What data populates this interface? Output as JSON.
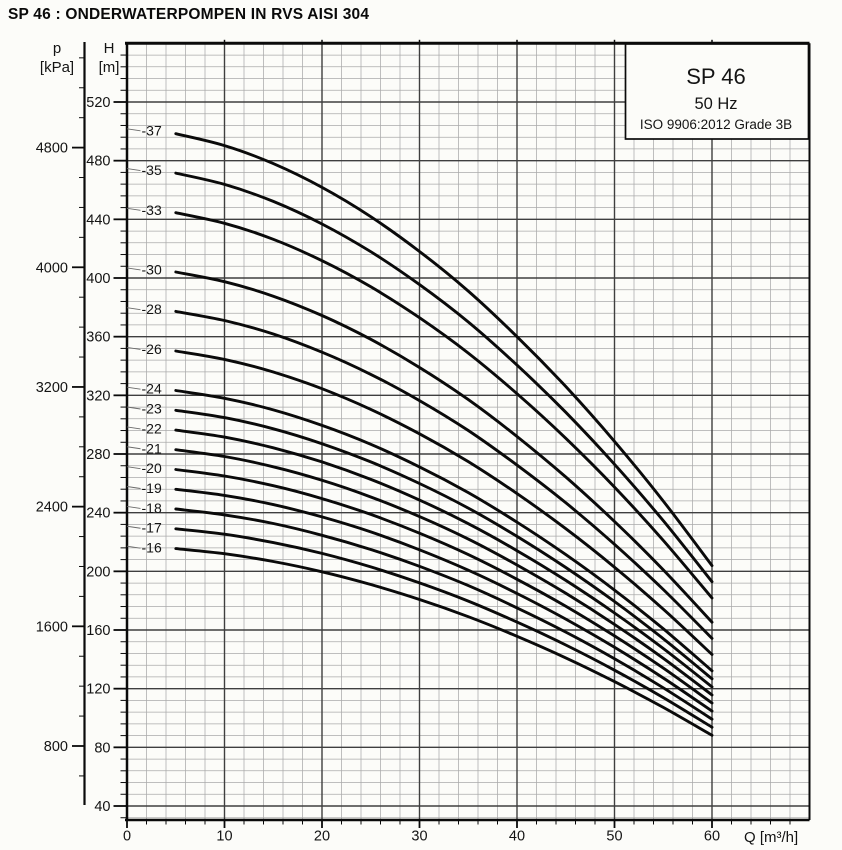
{
  "page": {
    "title": "SP 46 : ONDERWATERPOMPEN IN RVS AISI 304"
  },
  "legend_box": {
    "model": "SP 46",
    "frequency": "50 Hz",
    "standard": "ISO 9906:2012 Grade 3B"
  },
  "axes": {
    "pressure": {
      "symbol": "p",
      "unit": "[kPa]",
      "ticks": [
        800,
        1600,
        2400,
        3200,
        4000,
        4800
      ],
      "minor_step": 200,
      "minor_range": [
        600,
        5400
      ]
    },
    "head": {
      "symbol": "H",
      "unit": "[m]",
      "ticks": [
        40,
        80,
        120,
        160,
        200,
        240,
        280,
        320,
        360,
        400,
        440,
        480,
        520
      ],
      "minor_step": 8,
      "minor_range": [
        32,
        552
      ]
    },
    "flow": {
      "label": "Q [m³/h]",
      "ticks": [
        0,
        10,
        20,
        30,
        40,
        50,
        60
      ],
      "minor_step": 2,
      "minor_range": [
        2,
        68
      ]
    }
  },
  "chart_data": {
    "type": "line",
    "title": "SP 46 pump performance curves",
    "subtitle": "50 Hz, ISO 9906:2012 Grade 3B",
    "xlabel": "Q [m³/h]",
    "ylabel": "H [m]",
    "xlim": [
      0,
      70
    ],
    "ylim": [
      30,
      560
    ],
    "grid": "on",
    "x": [
      0,
      5,
      10,
      15,
      20,
      25,
      30,
      35,
      40,
      45,
      50,
      55,
      60
    ],
    "series": [
      {
        "name": "-37",
        "stages": 37,
        "values": [
          501.4,
          498.4,
          490.3,
          478.0,
          461.8,
          441.8,
          418.1,
          391.1,
          360.0,
          326.0,
          288.6,
          247.9,
          203.9
        ]
      },
      {
        "name": "-35",
        "stages": 35,
        "values": [
          474.3,
          471.5,
          463.8,
          452.2,
          436.8,
          417.9,
          395.5,
          370.0,
          340.6,
          308.4,
          273.0,
          234.5,
          192.9
        ]
      },
      {
        "name": "-33",
        "stages": 33,
        "values": [
          447.2,
          444.5,
          437.3,
          426.4,
          411.8,
          394.0,
          372.9,
          348.8,
          321.1,
          290.7,
          257.4,
          221.1,
          181.8
        ]
      },
      {
        "name": "-30",
        "stages": 30,
        "values": [
          406.5,
          404.1,
          397.5,
          387.6,
          374.4,
          358.2,
          339.0,
          317.1,
          291.9,
          264.3,
          234.0,
          201.0,
          165.3
        ]
      },
      {
        "name": "-28",
        "stages": 28,
        "values": [
          379.4,
          377.2,
          371.0,
          361.8,
          349.4,
          334.3,
          316.4,
          296.0,
          272.4,
          246.7,
          218.4,
          187.6,
          154.3
        ]
      },
      {
        "name": "-26",
        "stages": 26,
        "values": [
          352.3,
          350.2,
          344.5,
          335.9,
          324.5,
          310.4,
          293.8,
          274.8,
          253.0,
          229.1,
          202.8,
          174.2,
          143.3
        ]
      },
      {
        "name": "-24",
        "stages": 24,
        "values": [
          325.2,
          323.3,
          318.0,
          310.1,
          299.5,
          286.6,
          271.2,
          253.7,
          233.5,
          211.4,
          187.2,
          160.8,
          132.2
        ]
      },
      {
        "name": "-23",
        "stages": 23,
        "values": [
          311.7,
          309.8,
          304.8,
          297.2,
          287.0,
          274.6,
          259.9,
          243.1,
          223.8,
          202.6,
          179.4,
          154.1,
          126.7
        ]
      },
      {
        "name": "-22",
        "stages": 22,
        "values": [
          298.1,
          296.3,
          291.5,
          284.2,
          274.6,
          262.7,
          248.6,
          232.5,
          214.1,
          193.8,
          171.6,
          147.4,
          121.2
        ]
      },
      {
        "name": "-21",
        "stages": 21,
        "values": [
          284.6,
          282.9,
          278.3,
          271.3,
          262.1,
          250.7,
          237.3,
          222.0,
          204.3,
          185.0,
          163.8,
          140.7,
          115.7
        ]
      },
      {
        "name": "-20",
        "stages": 20,
        "values": [
          271.0,
          269.4,
          265.0,
          258.4,
          249.6,
          238.8,
          226.0,
          211.4,
          194.6,
          176.2,
          156.0,
          134.0,
          110.2
        ]
      },
      {
        "name": "-19",
        "stages": 19,
        "values": [
          257.5,
          255.9,
          251.8,
          245.5,
          237.1,
          226.9,
          214.7,
          200.8,
          184.9,
          167.4,
          148.2,
          127.3,
          104.7
        ]
      },
      {
        "name": "-18",
        "stages": 18,
        "values": [
          243.9,
          242.5,
          238.5,
          232.6,
          224.6,
          214.9,
          203.4,
          190.3,
          175.1,
          158.6,
          140.4,
          120.6,
          99.2
        ]
      },
      {
        "name": "-17",
        "stages": 17,
        "values": [
          230.4,
          229.0,
          225.3,
          219.6,
          212.2,
          203.0,
          192.1,
          179.7,
          165.4,
          149.8,
          132.6,
          113.9,
          93.7
        ]
      },
      {
        "name": "-16",
        "stages": 16,
        "values": [
          216.8,
          215.5,
          212.0,
          206.7,
          199.7,
          191.0,
          180.8,
          169.1,
          155.7,
          141.0,
          124.8,
          107.2,
          88.2
        ]
      }
    ]
  },
  "colors": {
    "curve": "#0a0a0a",
    "grid_minor": "#aaaaaa",
    "grid_major": "#3f3f3f",
    "axis": "#0a0a0a",
    "leader": "#6a6a6a",
    "text": "#141414"
  }
}
